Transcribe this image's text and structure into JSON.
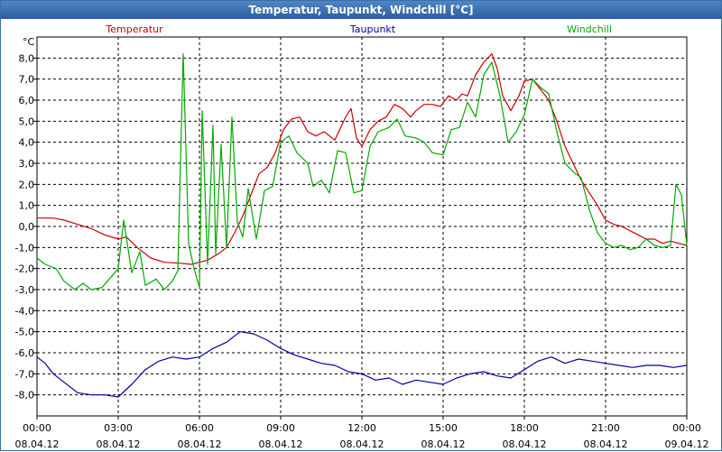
{
  "chart_data": {
    "type": "line",
    "title": "Temperatur, Taupunkt, Windchill [°C]",
    "ylabel": "°C",
    "xlabel": "",
    "ylim": [
      -9.0,
      9.0
    ],
    "xlim": [
      0,
      24
    ],
    "grid": true,
    "y_ticks": [
      8,
      7,
      6,
      5,
      4,
      3,
      2,
      1,
      0,
      -1,
      -2,
      -3,
      -4,
      -5,
      -6,
      -7,
      -8
    ],
    "y_tick_labels": [
      "8,0",
      "7,0",
      "6,0",
      "5,0",
      "4,0",
      "3,0",
      "2,0",
      "1,0",
      "0,0",
      "-1,0",
      "-2,0",
      "-3,0",
      "-4,0",
      "-5,0",
      "-6,0",
      "-7,0",
      "-8,0"
    ],
    "x_ticks": [
      0,
      3,
      6,
      9,
      12,
      15,
      18,
      21,
      24
    ],
    "x_tick_times": [
      "00:00",
      "03:00",
      "06:00",
      "09:00",
      "12:00",
      "15:00",
      "18:00",
      "21:00",
      "00:00"
    ],
    "x_tick_dates": [
      "08.04.12",
      "08.04.12",
      "08.04.12",
      "08.04.12",
      "08.04.12",
      "08.04.12",
      "08.04.12",
      "08.04.12",
      "09.04.12"
    ],
    "series": [
      {
        "name": "Temperatur",
        "color": "#cc0000",
        "points": [
          [
            0,
            0.4
          ],
          [
            0.6,
            0.4
          ],
          [
            1,
            0.3
          ],
          [
            1.5,
            0.1
          ],
          [
            2,
            -0.1
          ],
          [
            2.5,
            -0.4
          ],
          [
            3,
            -0.6
          ],
          [
            3.3,
            -0.5
          ],
          [
            3.7,
            -1.0
          ],
          [
            4.2,
            -1.5
          ],
          [
            4.7,
            -1.7
          ],
          [
            5.3,
            -1.75
          ],
          [
            5.7,
            -1.8
          ],
          [
            6,
            -1.7
          ],
          [
            6.3,
            -1.6
          ],
          [
            6.7,
            -1.3
          ],
          [
            7,
            -1.0
          ],
          [
            7.3,
            -0.3
          ],
          [
            7.6,
            0.5
          ],
          [
            7.9,
            1.5
          ],
          [
            8.2,
            2.5
          ],
          [
            8.5,
            2.8
          ],
          [
            8.8,
            3.5
          ],
          [
            9.1,
            4.6
          ],
          [
            9.4,
            5.1
          ],
          [
            9.7,
            5.2
          ],
          [
            10,
            4.5
          ],
          [
            10.3,
            4.3
          ],
          [
            10.6,
            4.5
          ],
          [
            11,
            4.1
          ],
          [
            11.4,
            5.2
          ],
          [
            11.6,
            5.6
          ],
          [
            11.8,
            4.2
          ],
          [
            12,
            3.8
          ],
          [
            12.3,
            4.6
          ],
          [
            12.6,
            5.0
          ],
          [
            12.9,
            5.2
          ],
          [
            13.2,
            5.8
          ],
          [
            13.5,
            5.6
          ],
          [
            13.8,
            5.2
          ],
          [
            14,
            5.5
          ],
          [
            14.3,
            5.8
          ],
          [
            14.6,
            5.8
          ],
          [
            14.9,
            5.7
          ],
          [
            15.2,
            6.2
          ],
          [
            15.5,
            6.0
          ],
          [
            15.7,
            6.3
          ],
          [
            15.9,
            6.2
          ],
          [
            16.2,
            7.2
          ],
          [
            16.5,
            7.8
          ],
          [
            16.8,
            8.2
          ],
          [
            17,
            7.5
          ],
          [
            17.2,
            6.2
          ],
          [
            17.5,
            5.5
          ],
          [
            17.8,
            6.2
          ],
          [
            18,
            6.9
          ],
          [
            18.3,
            7.0
          ],
          [
            18.6,
            6.5
          ],
          [
            18.9,
            6.0
          ],
          [
            19.2,
            5.0
          ],
          [
            19.5,
            3.8
          ],
          [
            19.8,
            3.0
          ],
          [
            20.1,
            2.2
          ],
          [
            20.4,
            1.6
          ],
          [
            20.7,
            1.0
          ],
          [
            21,
            0.3
          ],
          [
            21.3,
            0.1
          ],
          [
            21.6,
            0.0
          ],
          [
            21.9,
            -0.2
          ],
          [
            22.2,
            -0.4
          ],
          [
            22.5,
            -0.6
          ],
          [
            22.8,
            -0.6
          ],
          [
            23.1,
            -0.8
          ],
          [
            23.4,
            -0.7
          ],
          [
            23.7,
            -0.8
          ],
          [
            24,
            -0.9
          ]
        ]
      },
      {
        "name": "Taupunkt",
        "color": "#0000aa",
        "points": [
          [
            0,
            -6.2
          ],
          [
            0.3,
            -6.5
          ],
          [
            0.6,
            -7.0
          ],
          [
            1,
            -7.4
          ],
          [
            1.5,
            -7.9
          ],
          [
            2,
            -8.0
          ],
          [
            2.5,
            -8.0
          ],
          [
            3,
            -8.1
          ],
          [
            3.5,
            -7.5
          ],
          [
            4,
            -6.8
          ],
          [
            4.5,
            -6.4
          ],
          [
            5,
            -6.2
          ],
          [
            5.5,
            -6.3
          ],
          [
            6,
            -6.2
          ],
          [
            6.5,
            -5.8
          ],
          [
            7,
            -5.5
          ],
          [
            7.5,
            -5.0
          ],
          [
            8,
            -5.1
          ],
          [
            8.5,
            -5.4
          ],
          [
            9,
            -5.8
          ],
          [
            9.5,
            -6.1
          ],
          [
            10,
            -6.3
          ],
          [
            10.5,
            -6.5
          ],
          [
            11,
            -6.6
          ],
          [
            11.5,
            -6.9
          ],
          [
            12,
            -7.0
          ],
          [
            12.5,
            -7.3
          ],
          [
            13,
            -7.2
          ],
          [
            13.5,
            -7.5
          ],
          [
            14,
            -7.3
          ],
          [
            14.5,
            -7.4
          ],
          [
            15,
            -7.5
          ],
          [
            15.5,
            -7.2
          ],
          [
            16,
            -7.0
          ],
          [
            16.5,
            -6.9
          ],
          [
            17,
            -7.1
          ],
          [
            17.5,
            -7.2
          ],
          [
            18,
            -6.8
          ],
          [
            18.5,
            -6.4
          ],
          [
            19,
            -6.2
          ],
          [
            19.5,
            -6.5
          ],
          [
            20,
            -6.3
          ],
          [
            20.5,
            -6.4
          ],
          [
            21,
            -6.5
          ],
          [
            21.5,
            -6.6
          ],
          [
            22,
            -6.7
          ],
          [
            22.5,
            -6.6
          ],
          [
            23,
            -6.6
          ],
          [
            23.5,
            -6.7
          ],
          [
            24,
            -6.6
          ]
        ]
      },
      {
        "name": "Windchill",
        "color": "#00aa00",
        "points": [
          [
            0,
            -1.5
          ],
          [
            0.3,
            -1.8
          ],
          [
            0.7,
            -2.0
          ],
          [
            1,
            -2.6
          ],
          [
            1.4,
            -3.0
          ],
          [
            1.7,
            -2.7
          ],
          [
            2,
            -3.0
          ],
          [
            2.4,
            -2.9
          ],
          [
            2.8,
            -2.3
          ],
          [
            3,
            -2.0
          ],
          [
            3.2,
            0.3
          ],
          [
            3.5,
            -2.2
          ],
          [
            3.8,
            -1.2
          ],
          [
            4,
            -2.8
          ],
          [
            4.4,
            -2.5
          ],
          [
            4.7,
            -3.0
          ],
          [
            5,
            -2.6
          ],
          [
            5.2,
            -2.1
          ],
          [
            5.4,
            8.2
          ],
          [
            5.6,
            -0.8
          ],
          [
            5.8,
            -2.0
          ],
          [
            6,
            -2.9
          ],
          [
            6.1,
            5.5
          ],
          [
            6.3,
            -1.8
          ],
          [
            6.5,
            4.8
          ],
          [
            6.6,
            -1.3
          ],
          [
            6.8,
            3.9
          ],
          [
            7,
            -1.0
          ],
          [
            7.2,
            5.2
          ],
          [
            7.4,
            0.2
          ],
          [
            7.6,
            -0.5
          ],
          [
            7.8,
            1.8
          ],
          [
            8.1,
            -0.6
          ],
          [
            8.4,
            1.7
          ],
          [
            8.7,
            1.9
          ],
          [
            9,
            4.0
          ],
          [
            9.3,
            4.3
          ],
          [
            9.6,
            3.5
          ],
          [
            10,
            3.0
          ],
          [
            10.2,
            1.9
          ],
          [
            10.5,
            2.2
          ],
          [
            10.8,
            1.6
          ],
          [
            11.1,
            3.6
          ],
          [
            11.4,
            3.5
          ],
          [
            11.7,
            1.6
          ],
          [
            12,
            1.7
          ],
          [
            12.3,
            3.8
          ],
          [
            12.6,
            4.5
          ],
          [
            13,
            4.7
          ],
          [
            13.3,
            5.1
          ],
          [
            13.6,
            4.3
          ],
          [
            14,
            4.2
          ],
          [
            14.3,
            4.0
          ],
          [
            14.6,
            3.5
          ],
          [
            15,
            3.4
          ],
          [
            15.3,
            4.6
          ],
          [
            15.6,
            4.7
          ],
          [
            15.9,
            5.9
          ],
          [
            16.2,
            5.2
          ],
          [
            16.5,
            7.2
          ],
          [
            16.8,
            7.8
          ],
          [
            17.1,
            6.2
          ],
          [
            17.4,
            4.0
          ],
          [
            17.7,
            4.5
          ],
          [
            18,
            5.3
          ],
          [
            18.3,
            7.0
          ],
          [
            18.6,
            6.6
          ],
          [
            18.9,
            6.3
          ],
          [
            19.2,
            4.5
          ],
          [
            19.5,
            3.0
          ],
          [
            19.8,
            2.6
          ],
          [
            20.1,
            2.3
          ],
          [
            20.4,
            0.8
          ],
          [
            20.7,
            -0.3
          ],
          [
            21,
            -0.8
          ],
          [
            21.3,
            -1.0
          ],
          [
            21.6,
            -0.9
          ],
          [
            21.9,
            -1.1
          ],
          [
            22.2,
            -1.0
          ],
          [
            22.5,
            -0.6
          ],
          [
            22.8,
            -0.9
          ],
          [
            23.1,
            -1.0
          ],
          [
            23.4,
            -0.9
          ],
          [
            23.6,
            2.0
          ],
          [
            23.8,
            1.5
          ],
          [
            24,
            -0.9
          ]
        ]
      }
    ]
  }
}
